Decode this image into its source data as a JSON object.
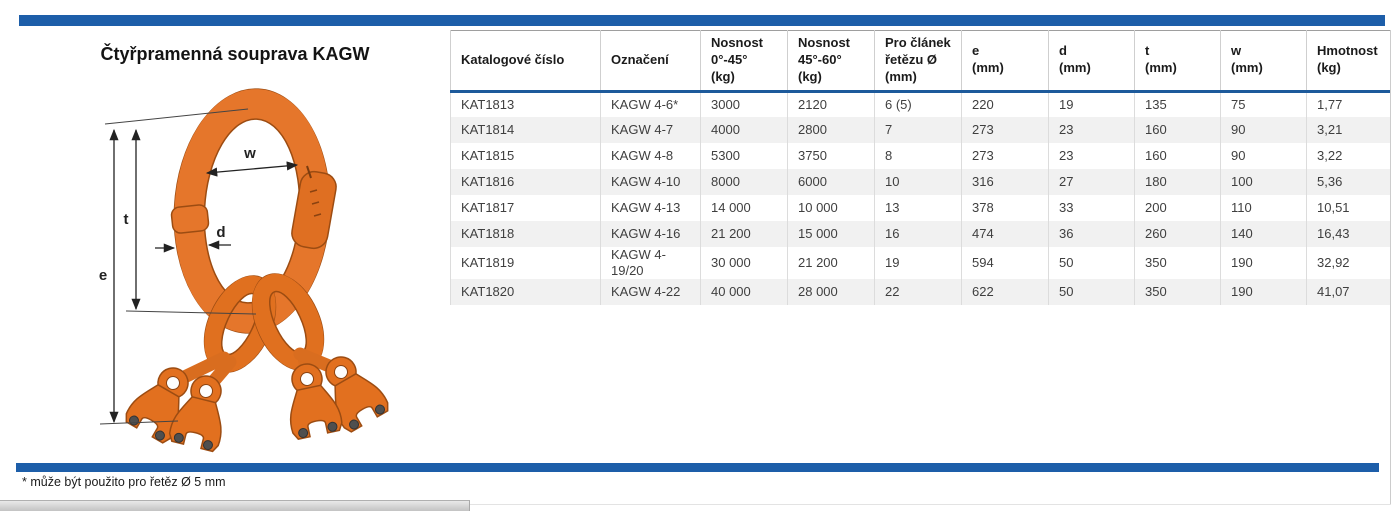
{
  "page": {
    "title": "Čtyřpramenná souprava KAGW",
    "footnote": "* může být použito pro řetěz Ø 5 mm"
  },
  "diagram": {
    "description": "four-leg-master-link-assembly",
    "labels": {
      "w": "w",
      "t": "t",
      "d": "d",
      "e": "e"
    }
  },
  "table": {
    "columns": [
      "Katalogové číslo",
      "Označení",
      "Nosnost\n0°-45°\n(kg)",
      "Nosnost\n45°-60°\n(kg)",
      "Pro článek\nřetězu Ø\n(mm)",
      "e\n(mm)",
      "d\n(mm)",
      "t\n(mm)",
      "w\n(mm)",
      "Hmotnost\n(kg)"
    ],
    "rows": [
      [
        "KAT1813",
        "KAGW 4-6*",
        "3000",
        "2120",
        "6 (5)",
        "220",
        "19",
        "135",
        "75",
        "1,77"
      ],
      [
        "KAT1814",
        "KAGW 4-7",
        "4000",
        "2800",
        "7",
        "273",
        "23",
        "160",
        "90",
        "3,21"
      ],
      [
        "KAT1815",
        "KAGW 4-8",
        "5300",
        "3750",
        "8",
        "273",
        "23",
        "160",
        "90",
        "3,22"
      ],
      [
        "KAT1816",
        "KAGW 4-10",
        "8000",
        "6000",
        "10",
        "316",
        "27",
        "180",
        "100",
        "5,36"
      ],
      [
        "KAT1817",
        "KAGW 4-13",
        "14 000",
        "10 000",
        "13",
        "378",
        "33",
        "200",
        "110",
        "10,51"
      ],
      [
        "KAT1818",
        "KAGW 4-16",
        "21 200",
        "15 000",
        "16",
        "474",
        "36",
        "260",
        "140",
        "16,43"
      ],
      [
        "KAT1819",
        "KAGW 4-19/20",
        "30 000",
        "21 200",
        "19",
        "594",
        "50",
        "350",
        "190",
        "32,92"
      ],
      [
        "KAT1820",
        "KAGW 4-22",
        "40 000",
        "28 000",
        "22",
        "622",
        "50",
        "350",
        "190",
        "41,07"
      ]
    ]
  },
  "colors": {
    "accent_blue": "#1d5ea9",
    "header_rule_blue": "#1d5a9b",
    "row_alt_gray": "#f1f1f1",
    "product_orange": "#e5762b"
  }
}
